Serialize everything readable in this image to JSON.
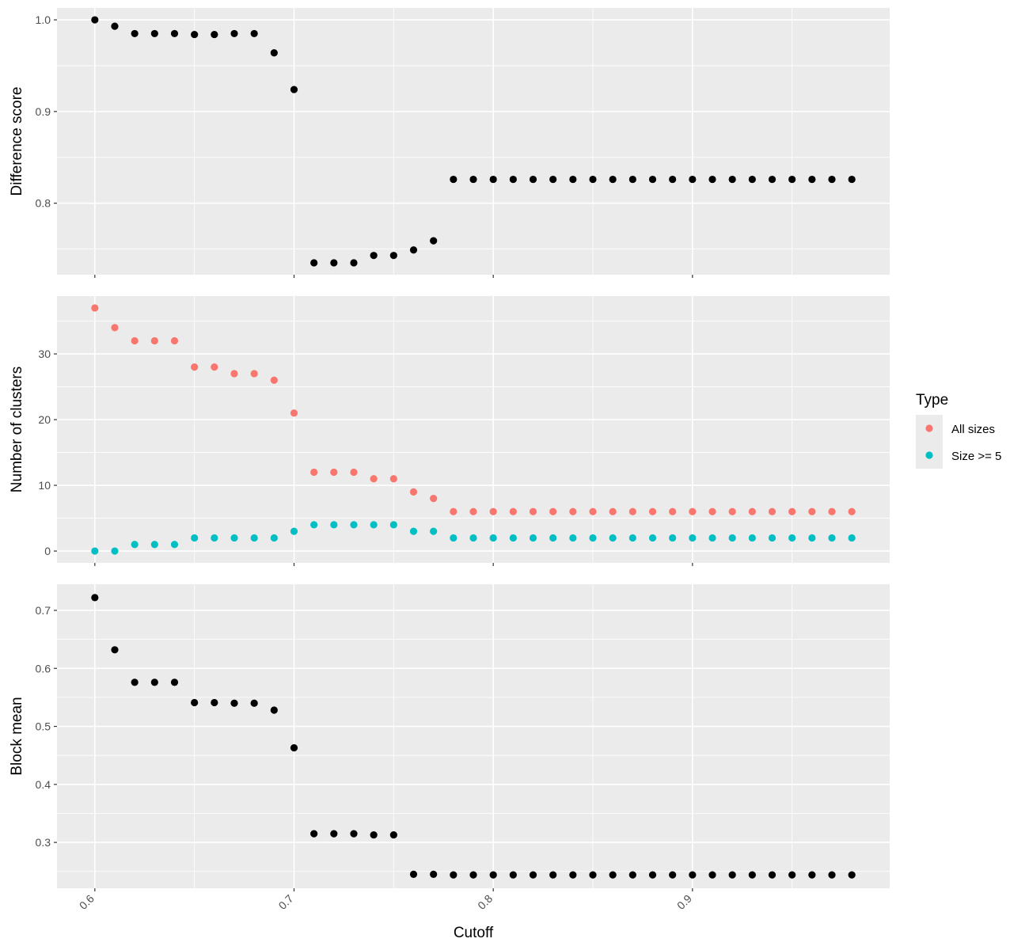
{
  "chart_data": {
    "type": "scatter",
    "xlabel": "Cutoff",
    "x_ticks": [
      0.6,
      0.7,
      0.8,
      0.9
    ],
    "xlim": [
      0.581,
      0.999
    ],
    "x": [
      0.6,
      0.61,
      0.62,
      0.63,
      0.64,
      0.65,
      0.66,
      0.67,
      0.68,
      0.69,
      0.7,
      0.71,
      0.72,
      0.73,
      0.74,
      0.75,
      0.76,
      0.77,
      0.78,
      0.79,
      0.8,
      0.81,
      0.82,
      0.83,
      0.84,
      0.85,
      0.86,
      0.87,
      0.88,
      0.89,
      0.9,
      0.91,
      0.92,
      0.93,
      0.94,
      0.95,
      0.96,
      0.97,
      0.98
    ],
    "legend": {
      "title": "Type",
      "position": "right",
      "entries": [
        {
          "label": "All sizes",
          "color": "#F8766D"
        },
        {
          "label": "Size >= 5",
          "color": "#00BFC4"
        }
      ]
    },
    "panels": [
      {
        "ylabel": "Difference score",
        "ylim": [
          0.722,
          1.013
        ],
        "y_ticks": [
          0.8,
          0.9,
          1.0
        ],
        "y_tick_labels": [
          "0.8",
          "0.9",
          "1.0"
        ],
        "series": [
          {
            "color": "#000000",
            "values": [
              1.0,
              0.993,
              0.985,
              0.985,
              0.985,
              0.984,
              0.984,
              0.985,
              0.985,
              0.964,
              0.924,
              0.735,
              0.735,
              0.735,
              0.743,
              0.743,
              0.749,
              0.759,
              0.826,
              0.826,
              0.826,
              0.826,
              0.826,
              0.826,
              0.826,
              0.826,
              0.826,
              0.826,
              0.826,
              0.826,
              0.826,
              0.826,
              0.826,
              0.826,
              0.826,
              0.826,
              0.826,
              0.826,
              0.826
            ]
          }
        ]
      },
      {
        "ylabel": "Number of clusters",
        "ylim": [
          -1.8,
          38.8
        ],
        "y_ticks": [
          0,
          10,
          20,
          30
        ],
        "y_tick_labels": [
          "0",
          "10",
          "20",
          "30"
        ],
        "series": [
          {
            "name": "All sizes",
            "color": "#F8766D",
            "values": [
              37,
              34,
              32,
              32,
              32,
              28,
              28,
              27,
              27,
              26,
              21,
              12,
              12,
              12,
              11,
              11,
              9,
              8,
              6,
              6,
              6,
              6,
              6,
              6,
              6,
              6,
              6,
              6,
              6,
              6,
              6,
              6,
              6,
              6,
              6,
              6,
              6,
              6,
              6
            ]
          },
          {
            "name": "Size >= 5",
            "color": "#00BFC4",
            "values": [
              0,
              0,
              1,
              1,
              1,
              2,
              2,
              2,
              2,
              2,
              3,
              4,
              4,
              4,
              4,
              4,
              3,
              3,
              2,
              2,
              2,
              2,
              2,
              2,
              2,
              2,
              2,
              2,
              2,
              2,
              2,
              2,
              2,
              2,
              2,
              2,
              2,
              2,
              2
            ]
          }
        ]
      },
      {
        "ylabel": "Block mean",
        "ylim": [
          0.221,
          0.745
        ],
        "y_ticks": [
          0.3,
          0.4,
          0.5,
          0.6,
          0.7
        ],
        "y_tick_labels": [
          "0.3",
          "0.4",
          "0.5",
          "0.6",
          "0.7"
        ],
        "series": [
          {
            "color": "#000000",
            "values": [
              0.722,
              0.632,
              0.576,
              0.576,
              0.576,
              0.541,
              0.541,
              0.54,
              0.54,
              0.528,
              0.463,
              0.315,
              0.315,
              0.315,
              0.313,
              0.313,
              0.245,
              0.245,
              0.244,
              0.244,
              0.244,
              0.244,
              0.244,
              0.244,
              0.244,
              0.244,
              0.244,
              0.244,
              0.244,
              0.244,
              0.244,
              0.244,
              0.244,
              0.244,
              0.244,
              0.244,
              0.244,
              0.244,
              0.244
            ]
          }
        ]
      }
    ]
  }
}
